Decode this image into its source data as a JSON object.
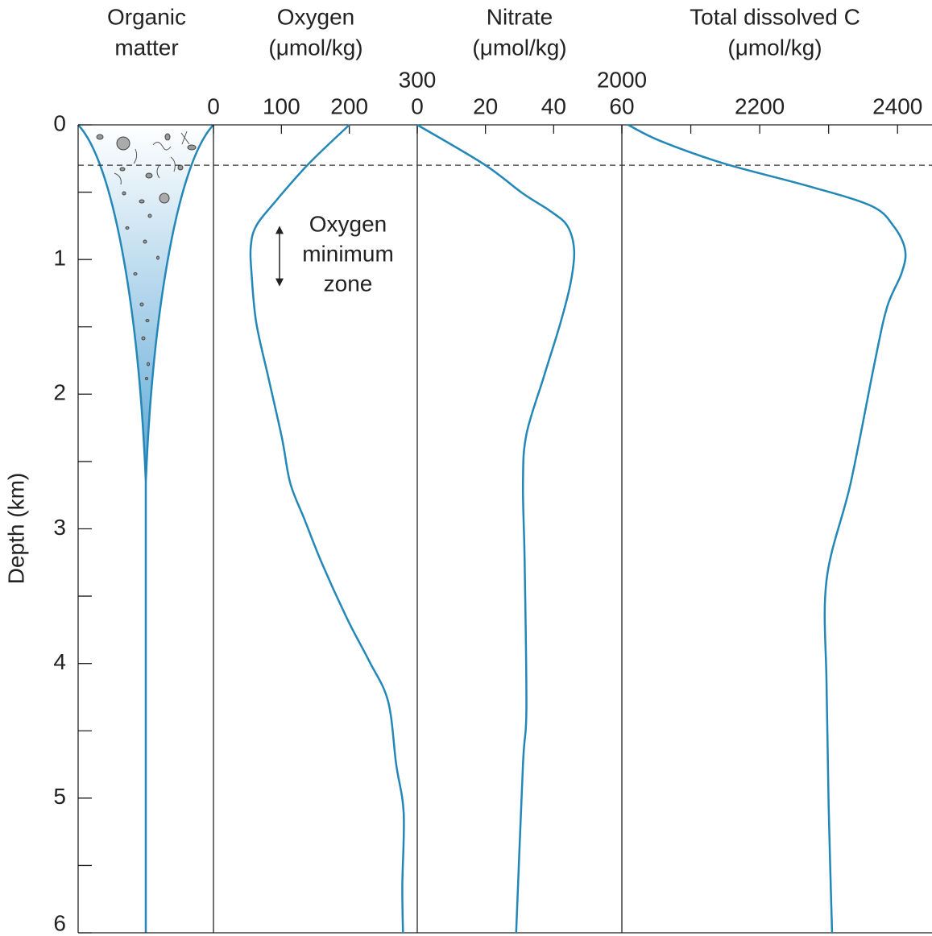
{
  "chart_data": {
    "type": "line",
    "ylabel": "Depth (km)",
    "ylim": [
      0,
      6
    ],
    "yticks": [
      0,
      1,
      2,
      3,
      4,
      5,
      6
    ],
    "yminorticks": [
      0.5,
      1.5,
      2.5,
      3.5,
      4.5,
      5.5
    ],
    "reference_depth": 0.3,
    "color": "#2387b8",
    "panels": [
      {
        "title": [
          "Organic",
          "matter"
        ]
      },
      {
        "title": [
          "Oxygen",
          "(μmol/kg)"
        ],
        "xlim": [
          0,
          300
        ],
        "xticks": [
          0,
          100,
          200,
          300
        ],
        "annotation": [
          "Oxygen",
          "minimum",
          "zone"
        ],
        "annotation_range": [
          0.75,
          1.2
        ],
        "depths": [
          0,
          0.29,
          0.57,
          0.75,
          0.9,
          1.1,
          1.47,
          1.88,
          2.33,
          2.66,
          2.93,
          3.26,
          3.68,
          3.98,
          4.28,
          4.75,
          5.11,
          5.65,
          6
        ],
        "values": [
          200,
          140,
          91,
          63,
          55,
          56,
          63,
          81,
          101,
          113,
          134,
          160,
          198,
          229,
          257,
          269,
          280,
          278,
          279
        ]
      },
      {
        "title": [
          "Nitrate",
          "(μmol/kg)"
        ],
        "xlim": [
          0,
          60
        ],
        "xticks": [
          0,
          20,
          40,
          60
        ],
        "depths": [
          0,
          0.29,
          0.51,
          0.64,
          0.75,
          0.93,
          1.17,
          1.47,
          1.88,
          2.3,
          2.66,
          3.26,
          4.34,
          4.75,
          6
        ],
        "values": [
          0,
          19.4,
          31,
          39,
          44,
          46,
          45,
          42,
          37,
          32,
          31,
          31.5,
          32,
          31,
          29
        ]
      },
      {
        "title": [
          "Total dissolved C",
          "(μmol/kg)"
        ],
        "xlim": [
          2000,
          2450
        ],
        "xticks": [
          2000,
          2200,
          2400
        ],
        "xminorticks": [
          2100,
          2300
        ],
        "depths": [
          0,
          0.12,
          0.29,
          0.45,
          0.6,
          0.75,
          0.93,
          1.1,
          1.35,
          1.76,
          2.66,
          3.38,
          4.16,
          5.05,
          6
        ],
        "values": [
          2009,
          2056,
          2150,
          2267,
          2361,
          2394,
          2411,
          2406,
          2385,
          2367,
          2332,
          2297,
          2297,
          2300,
          2305
        ]
      }
    ]
  }
}
